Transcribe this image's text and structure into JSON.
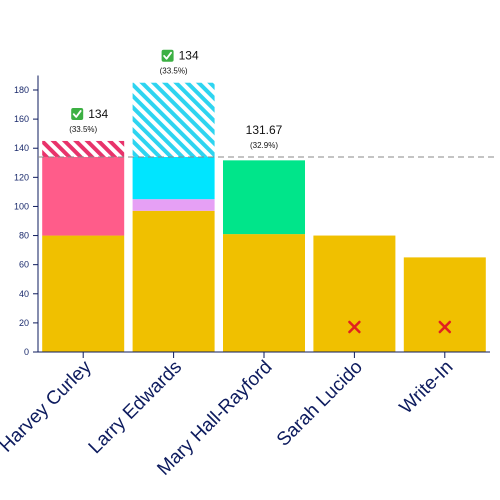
{
  "chart_data": {
    "type": "bar",
    "stacked": true,
    "categories": [
      "Harvey Curley",
      "Larry Edwards",
      "Mary Hall-Rayford",
      "Sarah Lucido",
      "Write-In"
    ],
    "ylim": [
      0,
      190
    ],
    "yticks": [
      0,
      20,
      40,
      60,
      80,
      100,
      120,
      140,
      160,
      180
    ],
    "threshold": 134,
    "series": [
      {
        "color": "#f0c000",
        "pattern": "solid",
        "values": [
          80,
          97,
          81,
          80,
          65
        ]
      },
      {
        "color": "#ff5c8a",
        "pattern": "solid",
        "values": [
          54,
          0,
          0,
          0,
          0
        ]
      },
      {
        "color": "#e6a0f5",
        "pattern": "solid",
        "values": [
          0,
          8,
          0,
          0,
          0
        ]
      },
      {
        "color": "#00e5ff",
        "pattern": "solid",
        "values": [
          0,
          29,
          0,
          0,
          0
        ]
      },
      {
        "color": "#00e58a",
        "pattern": "solid",
        "values": [
          0,
          0,
          50.67,
          0,
          0
        ]
      },
      {
        "color": "#e8336b",
        "pattern": "hatched",
        "values": [
          11,
          0,
          0,
          0,
          0
        ]
      },
      {
        "color": "#2ed4f0",
        "pattern": "hatched",
        "values": [
          0,
          51,
          0,
          0,
          0
        ]
      }
    ],
    "annotations": [
      {
        "category": "Harvey Curley",
        "status": "elected",
        "icon": "check-mark-icon",
        "value": "134",
        "percent": "(33.5%)",
        "at": 145
      },
      {
        "category": "Larry Edwards",
        "status": "elected",
        "icon": "check-mark-icon",
        "value": "134",
        "percent": "(33.5%)",
        "at": 185
      },
      {
        "category": "Mary Hall-Rayford",
        "status": "none",
        "icon": "",
        "value": "131.67",
        "percent": "(32.9%)",
        "at": 134
      },
      {
        "category": "Sarah Lucido",
        "status": "eliminated",
        "icon": "cross-mark-icon",
        "value": "",
        "percent": "",
        "at": null
      },
      {
        "category": "Write-In",
        "status": "eliminated",
        "icon": "cross-mark-icon",
        "value": "",
        "percent": "",
        "at": null
      }
    ],
    "title": "",
    "xlabel": "",
    "ylabel": "",
    "grid": false,
    "legend": "none"
  }
}
